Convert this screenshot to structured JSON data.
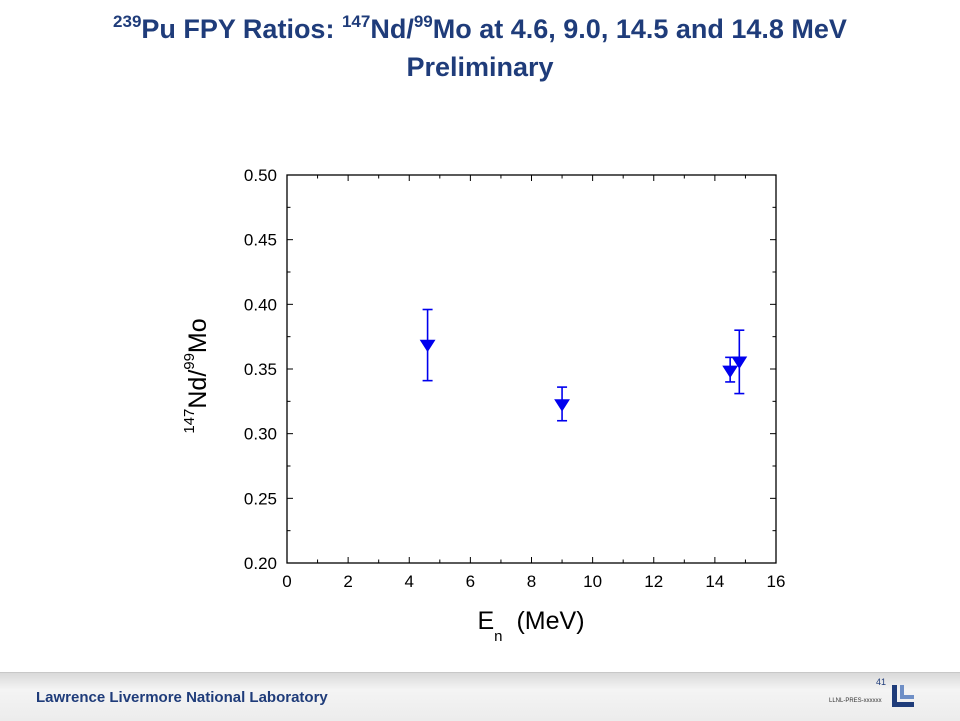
{
  "slide": {
    "title_line1": {
      "sup1": "239",
      "part1": "Pu FPY Ratios: ",
      "sup2": "147",
      "part2": "Nd/",
      "sup3": "99",
      "part3": "Mo at 4.6, 9.0, 14.5 and 14.8 MeV"
    },
    "title_line2": "Preliminary"
  },
  "chart_data": {
    "type": "scatter",
    "title": "",
    "xlabel": {
      "main": "E",
      "sub": "n",
      "rest": "(MeV)"
    },
    "ylabel": {
      "sup1": "147",
      "part1": "Nd/",
      "sup2": "99",
      "part2": "Mo"
    },
    "xlim": [
      0,
      16
    ],
    "ylim": [
      0.2,
      0.5
    ],
    "x_ticks": [
      "0",
      "2",
      "4",
      "6",
      "8",
      "10",
      "12",
      "14",
      "16"
    ],
    "y_ticks": [
      "0.20",
      "0.25",
      "0.30",
      "0.35",
      "0.40",
      "0.45",
      "0.50"
    ],
    "grid": false,
    "marker": "triangle-down",
    "color": "#0000ee",
    "series": [
      {
        "points": [
          {
            "x": 4.6,
            "y": 0.368,
            "yerr_low": 0.341,
            "yerr_high": 0.396
          },
          {
            "x": 9.0,
            "y": 0.322,
            "yerr_low": 0.31,
            "yerr_high": 0.336
          },
          {
            "x": 14.5,
            "y": 0.348,
            "yerr_low": 0.34,
            "yerr_high": 0.359
          },
          {
            "x": 14.8,
            "y": 0.355,
            "yerr_low": 0.331,
            "yerr_high": 0.38
          }
        ]
      }
    ]
  },
  "footer": {
    "lab_name": "Lawrence Livermore National Laboratory",
    "page_number": "41",
    "doc_code": "LLNL-PRES-xxxxxx"
  },
  "colors": {
    "title": "#1f3c7a",
    "marker": "#0000ee",
    "logo": "#1f3c7a"
  }
}
